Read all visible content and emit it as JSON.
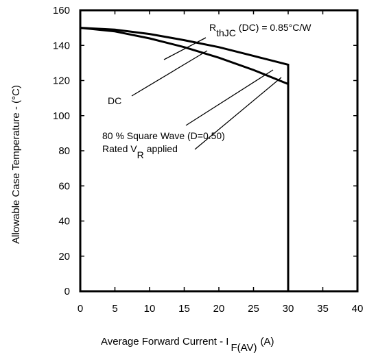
{
  "chart_data": {
    "type": "line",
    "xlabel": "Average Forward Current - I",
    "xlabel_sub": "F(AV)",
    "xlabel_unit": "(A)",
    "ylabel": "Allowable Case Temperature - (°C)",
    "xlim": [
      0,
      40
    ],
    "ylim": [
      0,
      160
    ],
    "x_ticks": [
      "0",
      "5",
      "10",
      "15",
      "20",
      "25",
      "30",
      "35",
      "40"
    ],
    "y_ticks": [
      "0",
      "20",
      "40",
      "60",
      "80",
      "100",
      "120",
      "140",
      "160"
    ],
    "grid": false,
    "series": [
      {
        "name": "DC",
        "x": [
          0,
          5,
          10,
          15,
          20,
          25,
          30,
          30
        ],
        "y": [
          150,
          149,
          146.5,
          143,
          139,
          134,
          129,
          0
        ]
      },
      {
        "name": "80 % Square Wave (D=0.50)",
        "x": [
          0,
          5,
          10,
          15,
          20,
          25,
          30,
          30
        ],
        "y": [
          150,
          148,
          144,
          139,
          133,
          126,
          118,
          0
        ]
      }
    ],
    "annotations": {
      "rth_main": "R",
      "rth_sub": "thJC",
      "rth_rest": "(DC) = 0.85°C/W",
      "dc": "DC",
      "square_wave": "80 % Square Wave (D=0.50)",
      "rated_main": "Rated V",
      "rated_sub": "R",
      "rated_rest": "applied"
    }
  }
}
